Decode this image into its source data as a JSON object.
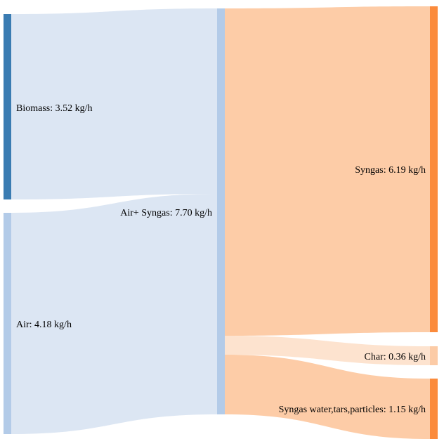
{
  "sankey": {
    "nodes": [
      {
        "id": "biomass",
        "label": "Biomass: 3.52 kg/h",
        "value": 3.52,
        "color": "#3a7cb2"
      },
      {
        "id": "air",
        "label": "Air: 4.18 kg/h",
        "value": 4.18,
        "color": "#b3cbe8"
      },
      {
        "id": "air_syngas",
        "label": "Air+ Syngas: 7.70 kg/h",
        "value": 7.7,
        "color": "#b3cbe8"
      },
      {
        "id": "syngas",
        "label": "Syngas: 6.19 kg/h",
        "value": 6.19,
        "color": "#fb8b3c"
      },
      {
        "id": "char",
        "label": "Char: 0.36 kg/h",
        "value": 0.36,
        "color": "#fccba6"
      },
      {
        "id": "syngas_water",
        "label": "Syngas water,tars,particles: 1.15 kg/h",
        "value": 1.15,
        "color": "#fb8b3c"
      }
    ],
    "links": [
      {
        "source": "biomass",
        "target": "air_syngas",
        "value": 3.52,
        "color": "#dce6f3"
      },
      {
        "source": "air",
        "target": "air_syngas",
        "value": 4.18,
        "color": "#dce6f3"
      },
      {
        "source": "air_syngas",
        "target": "syngas",
        "value": 6.19,
        "color": "#fdcca7"
      },
      {
        "source": "air_syngas",
        "target": "char",
        "value": 0.36,
        "color": "#fde3cf"
      },
      {
        "source": "air_syngas",
        "target": "syngas_water",
        "value": 1.15,
        "color": "#fdcca7"
      }
    ]
  }
}
